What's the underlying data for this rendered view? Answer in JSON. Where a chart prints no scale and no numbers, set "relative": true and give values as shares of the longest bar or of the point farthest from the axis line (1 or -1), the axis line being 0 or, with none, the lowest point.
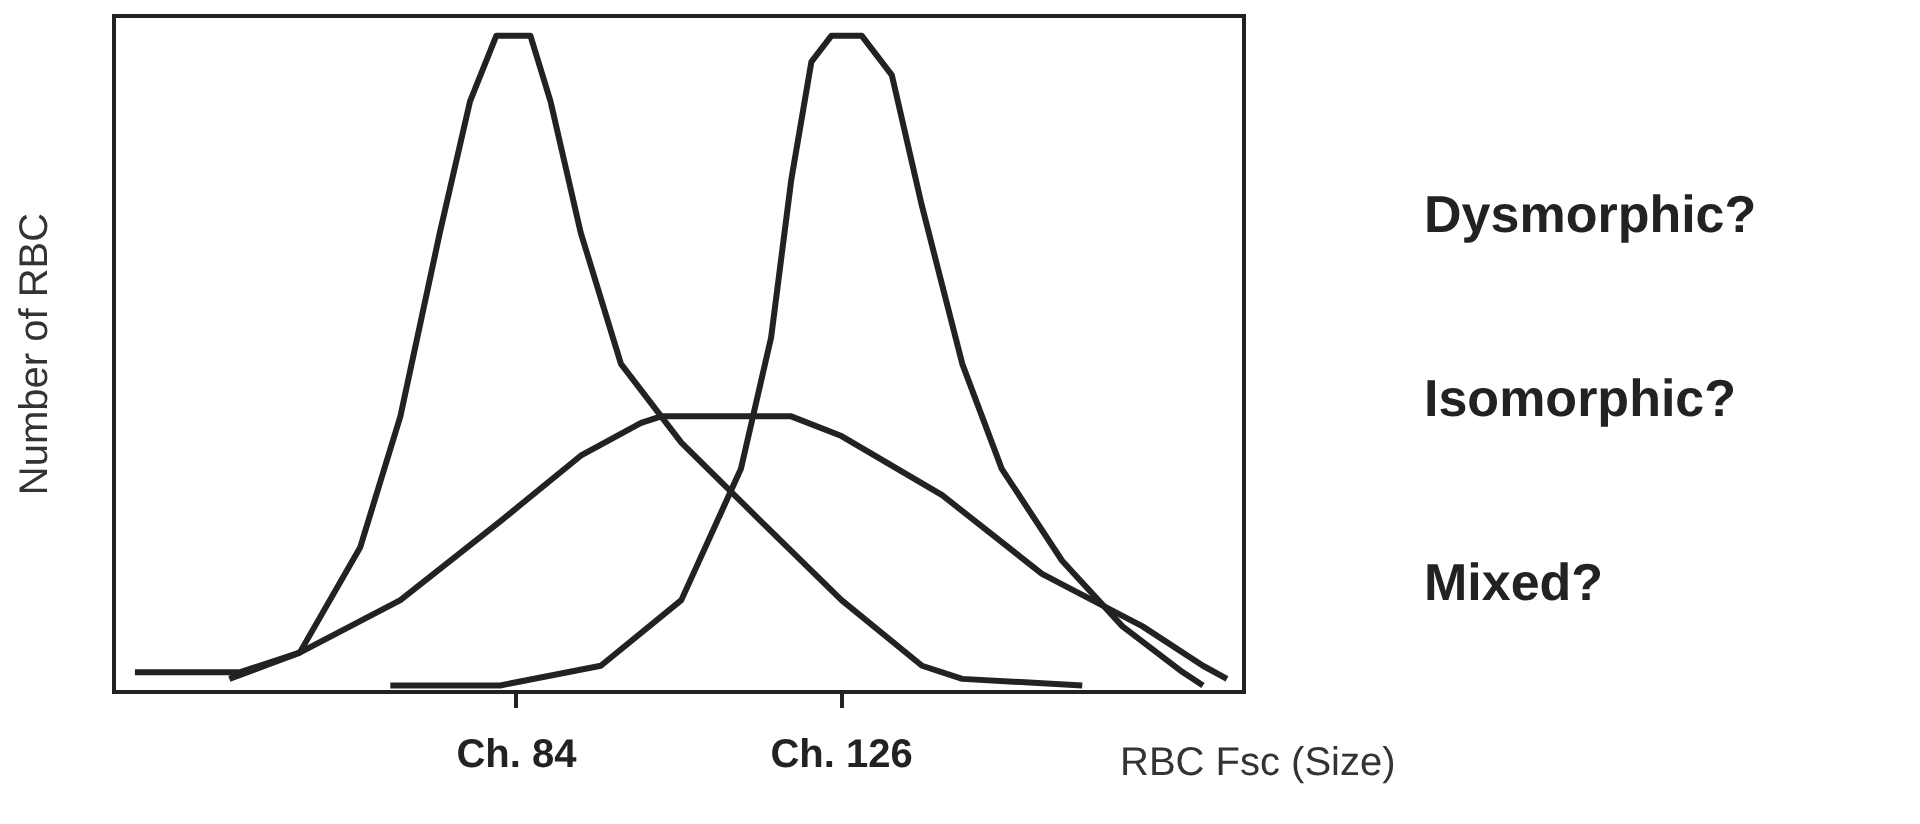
{
  "chart_data": {
    "type": "line",
    "relative": true,
    "xlabel": "RBC Fsc (Size)",
    "ylabel": "Number of RBC",
    "xlim": [
      32,
      178
    ],
    "xticks": [
      {
        "value": 84,
        "label": "Ch. 84"
      },
      {
        "value": 126,
        "label": "Ch. 126"
      }
    ],
    "grid": false,
    "legend": false,
    "marker": "none",
    "line_style": "solid",
    "annotations": [
      "Dysmorphic?",
      "Isomorphic?",
      "Mixed?"
    ],
    "series": [
      {
        "color": "#222222",
        "x": [
          34.7,
          48.2,
          56.0,
          63.8,
          69.0,
          74.1,
          78.0,
          81.4,
          85.8,
          88.4,
          92.3,
          97.5,
          105.3,
          115.6,
          126.0,
          136.4,
          141.6,
          157.1
        ],
        "values": [
          0.03,
          0.03,
          0.06,
          0.22,
          0.42,
          0.7,
          0.9,
          1.0,
          1.0,
          0.9,
          0.7,
          0.5,
          0.38,
          0.26,
          0.14,
          0.04,
          0.02,
          0.01
        ]
      },
      {
        "color": "#222222",
        "x": [
          67.7,
          81.9,
          94.9,
          105.3,
          113.0,
          116.9,
          119.5,
          122.1,
          124.7,
          128.6,
          132.5,
          136.4,
          141.6,
          146.7,
          154.5,
          162.3,
          170.1,
          172.7
        ],
        "values": [
          0.01,
          0.01,
          0.04,
          0.14,
          0.34,
          0.54,
          0.78,
          0.96,
          1.0,
          1.0,
          0.94,
          0.74,
          0.5,
          0.34,
          0.2,
          0.1,
          0.03,
          0.01
        ]
      },
      {
        "color": "#222222",
        "x": [
          46.9,
          56.0,
          69.0,
          81.9,
          92.3,
          100.1,
          102.7,
          119.5,
          126.0,
          139.0,
          151.9,
          164.9,
          172.7,
          175.8
        ],
        "values": [
          0.02,
          0.06,
          0.14,
          0.26,
          0.36,
          0.41,
          0.42,
          0.42,
          0.39,
          0.3,
          0.18,
          0.1,
          0.04,
          0.02
        ]
      }
    ]
  }
}
